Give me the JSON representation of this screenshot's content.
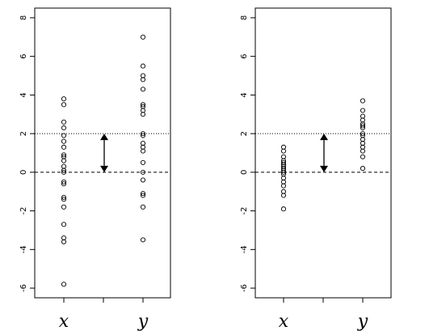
{
  "chart_data": [
    {
      "type": "scatter",
      "categories": [
        "x",
        "y"
      ],
      "ylim": [
        -6.5,
        8.5
      ],
      "yticks": [
        "8",
        "6",
        "4",
        "2",
        "0",
        "-2",
        "-4",
        "-6"
      ],
      "reference_lines": [
        {
          "y": 0,
          "style": "dashed"
        },
        {
          "y": 2,
          "style": "dotted"
        }
      ],
      "arrow": {
        "from": 0,
        "to": 2
      },
      "series": [
        {
          "category": "x",
          "values": [
            3.8,
            3.5,
            2.6,
            2.3,
            1.9,
            1.6,
            1.3,
            0.9,
            0.8,
            0.6,
            0.3,
            0.1,
            0.0,
            -0.5,
            -0.6,
            -1.3,
            -1.4,
            -1.8,
            -2.7,
            -3.4,
            -3.6,
            -5.8
          ]
        },
        {
          "category": "y",
          "values": [
            7.0,
            5.5,
            5.0,
            4.8,
            4.3,
            3.5,
            3.4,
            3.2,
            3.0,
            2.0,
            1.9,
            1.5,
            1.3,
            1.1,
            0.5,
            0.0,
            -0.4,
            -1.1,
            -1.2,
            -1.8,
            -3.5
          ]
        }
      ]
    },
    {
      "type": "scatter",
      "categories": [
        "x",
        "y"
      ],
      "ylim": [
        -6.5,
        8.5
      ],
      "yticks": [
        "8",
        "6",
        "4",
        "2",
        "0",
        "-2",
        "-4",
        "-6"
      ],
      "reference_lines": [
        {
          "y": 0,
          "style": "dashed"
        },
        {
          "y": 2,
          "style": "dotted"
        }
      ],
      "arrow": {
        "from": 0,
        "to": 2
      },
      "series": [
        {
          "category": "x",
          "values": [
            1.3,
            1.1,
            0.8,
            0.6,
            0.5,
            0.4,
            0.3,
            0.2,
            0.1,
            0.0,
            -0.1,
            -0.3,
            -0.5,
            -0.7,
            -1.0,
            -1.2,
            -1.9
          ]
        },
        {
          "category": "y",
          "values": [
            3.7,
            3.2,
            2.9,
            2.7,
            2.5,
            2.4,
            2.3,
            2.0,
            1.9,
            1.7,
            1.5,
            1.3,
            1.1,
            0.8,
            0.2
          ]
        }
      ]
    }
  ]
}
